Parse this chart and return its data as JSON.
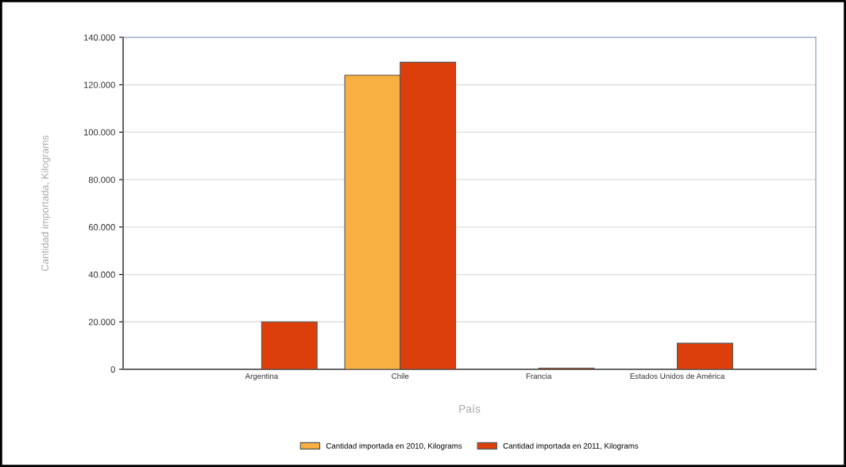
{
  "chart_data": {
    "type": "bar",
    "xlabel": "País",
    "ylabel": "Cantidad importada, Kilograms",
    "categories": [
      "Argentina",
      "Chile",
      "Francia",
      "Estados Unidos de América"
    ],
    "series": [
      {
        "name": "Cantidad importada en 2010, Kilograms",
        "color": "#f8b040",
        "values": [
          null,
          124000,
          null,
          null
        ]
      },
      {
        "name": "Cantidad importada en 2011, Kilograms",
        "color": "#dd3f0b",
        "values": [
          20000,
          129500,
          500,
          11000
        ]
      }
    ],
    "ylim": [
      0,
      140000
    ],
    "yticks": [
      0,
      {
        "value": 20000,
        "label": "20.000"
      },
      {
        "value": 40000,
        "label": "40.000"
      },
      {
        "value": 60000,
        "label": "60.000"
      },
      {
        "value": 80000,
        "label": "80.000"
      },
      {
        "value": 100000,
        "label": "100.000"
      },
      {
        "value": 120000,
        "label": "120.000"
      },
      {
        "value": 140000,
        "label": "140.000"
      }
    ],
    "grid": "y",
    "legend": "bottom"
  }
}
